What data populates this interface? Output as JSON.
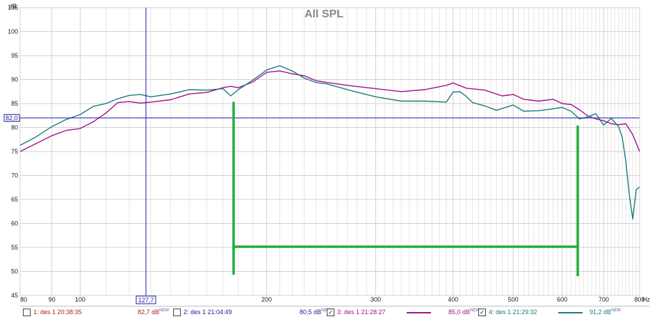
{
  "chart_data": {
    "type": "line",
    "title": "All SPL",
    "ylabel": "dB",
    "xunit": "Hz",
    "xscale": "log",
    "xlim": [
      80,
      800
    ],
    "ylim": [
      45,
      105
    ],
    "xticks": [
      80,
      90,
      100,
      200,
      300,
      400,
      500,
      600,
      700,
      800
    ],
    "xtick_labels": [
      "80",
      "90",
      "100",
      "200",
      "300",
      "400",
      "500",
      "600",
      "700",
      "800"
    ],
    "yticks": [
      45,
      50,
      55,
      60,
      65,
      70,
      75,
      80,
      85,
      90,
      95,
      100,
      105
    ],
    "grid": true,
    "cursor": {
      "x": 127.7,
      "x_label": "127,7",
      "y": 82.0,
      "y_label": "82,0",
      "color": "#1a1aa0"
    },
    "series": [
      {
        "name": "3: des 1 21:28:27",
        "color": "#a0108c",
        "x": [
          80,
          85,
          90,
          95,
          100,
          105,
          110,
          115,
          120,
          125,
          130,
          140,
          150,
          160,
          170,
          175,
          180,
          190,
          200,
          210,
          220,
          230,
          240,
          250,
          270,
          300,
          330,
          360,
          390,
          400,
          420,
          450,
          480,
          500,
          520,
          550,
          580,
          600,
          620,
          640,
          660,
          680,
          700,
          720,
          740,
          760,
          780,
          800
        ],
        "y": [
          75,
          76.7,
          78.3,
          79.4,
          79.8,
          81.2,
          83.0,
          85.2,
          85.4,
          85.1,
          85.3,
          85.8,
          87.0,
          87.3,
          88.3,
          88.6,
          88.3,
          89.5,
          91.5,
          91.8,
          91.2,
          90.8,
          89.8,
          89.4,
          88.8,
          88.1,
          87.5,
          87.9,
          88.8,
          89.3,
          88.2,
          87.8,
          86.6,
          86.9,
          85.9,
          85.5,
          85.9,
          85.0,
          84.8,
          83.7,
          82.4,
          81.8,
          81.4,
          80.8,
          80.6,
          80.8,
          78.5,
          75.0
        ]
      },
      {
        "name": "4: des 1 21:29:32",
        "color": "#1a7a78",
        "x": [
          80,
          85,
          90,
          95,
          100,
          105,
          110,
          115,
          120,
          125,
          130,
          140,
          150,
          160,
          170,
          175,
          180,
          190,
          200,
          210,
          220,
          230,
          240,
          250,
          270,
          300,
          330,
          360,
          390,
          400,
          410,
          420,
          430,
          450,
          470,
          500,
          520,
          550,
          580,
          600,
          620,
          640,
          660,
          680,
          700,
          720,
          740,
          750,
          760,
          770,
          780,
          790,
          800
        ],
        "y": [
          76.3,
          78.1,
          80.2,
          81.7,
          82.7,
          84.4,
          85.0,
          86.0,
          86.7,
          86.9,
          86.4,
          87.0,
          87.9,
          87.8,
          88.1,
          86.6,
          87.9,
          89.9,
          92.0,
          92.9,
          91.8,
          90.3,
          89.4,
          89.1,
          87.9,
          86.4,
          85.5,
          85.5,
          85.3,
          87.4,
          87.5,
          86.5,
          85.2,
          84.5,
          83.6,
          84.7,
          83.4,
          83.5,
          83.9,
          84.2,
          83.4,
          81.8,
          82.2,
          82.9,
          80.5,
          81.9,
          80.2,
          78.0,
          73.0,
          66.0,
          60.9,
          67.0,
          67.6
        ]
      }
    ]
  },
  "annotations": {
    "color": "#1fae3c"
  },
  "legend": [
    {
      "name": "1: des 1 20:38:35",
      "value": "82,7 dB",
      "new": "NEW",
      "checked": false,
      "color": "#b02020",
      "value_color": "#b02020"
    },
    {
      "name": "2: des 1 21:04:49",
      "value": "80,5 dB",
      "new": "NEW",
      "checked": false,
      "color": "#20208c",
      "value_color": "#20208c"
    },
    {
      "name": "3: des 1 21:28:27",
      "value": "85,0 dB",
      "new": "NEW",
      "checked": true,
      "color": "#a0108c",
      "value_color": "#a0108c",
      "line": true
    },
    {
      "name": "4: des 1 21:29:32",
      "value": "91,2 dB",
      "new": "NEW",
      "checked": true,
      "color": "#1a7a78",
      "value_color": "#1a7a78",
      "line": true
    }
  ],
  "check_mark": "✓"
}
